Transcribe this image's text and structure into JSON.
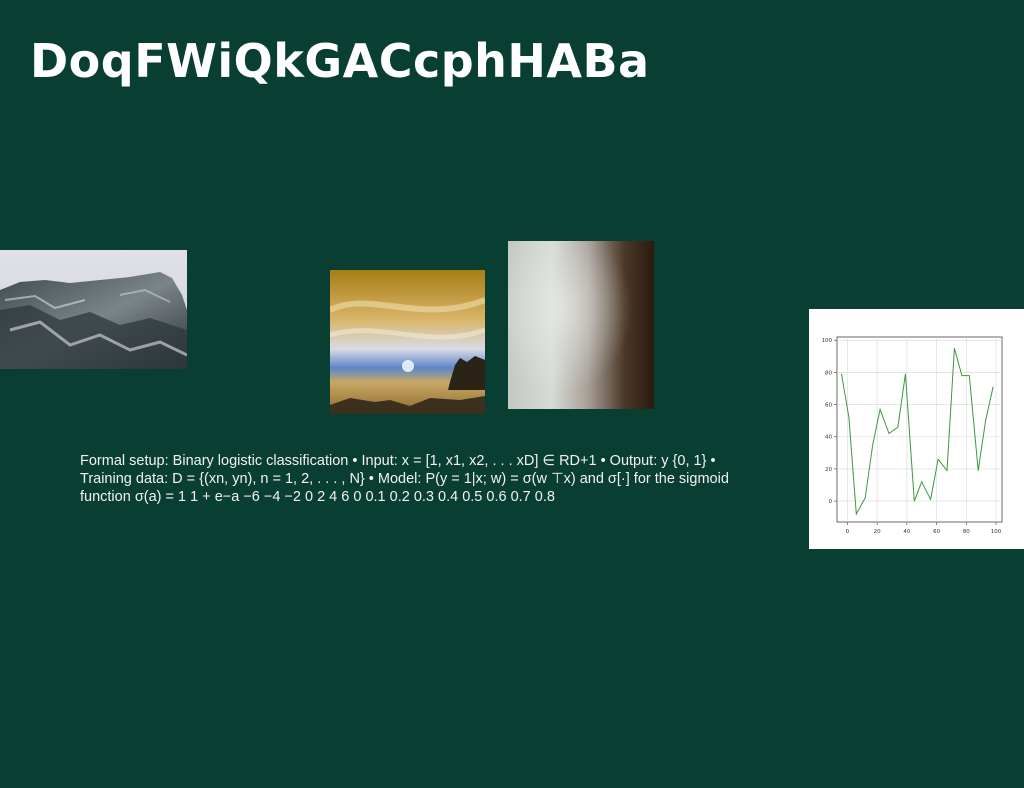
{
  "slide": {
    "title": "DoqFWiQkGACcphHABa",
    "body": "Formal setup: Binary logistic classification • Input: x = [1, x1, x2, . . . xD] ∈ RD+1 • Output: y {0, 1} • Training data: D = {(xn, yn), n = 1, 2, . . . , N} • Model: P(y = 1|x; w) = σ(w ⊤x) and σ[·] for the sigmoid function σ(a) = 1 1 + e−a −6 −4 −2 0 2 4 6 0 0.1 0.2 0.3 0.4 0.5 0.6 0.7 0.8"
  },
  "colors": {
    "background": "#093e33",
    "title": "#ffffff",
    "body_text": "#f2f2f2",
    "chart_line": "#3a9a3a"
  },
  "chart_data": {
    "type": "line",
    "title": "",
    "xlabel": "",
    "ylabel": "",
    "xlim": [
      -7,
      104
    ],
    "ylim": [
      -13,
      102
    ],
    "xticks": [
      "0",
      "20",
      "40",
      "60",
      "80",
      "100"
    ],
    "yticks": [
      "0",
      "20",
      "40",
      "60",
      "80",
      "100"
    ],
    "grid": true,
    "x": [
      -4,
      1,
      6,
      12,
      17,
      22,
      28,
      34,
      39,
      45,
      50,
      56,
      61,
      67,
      72,
      77,
      82,
      88,
      93,
      98
    ],
    "y": [
      79,
      52,
      -8,
      2,
      35,
      57,
      42,
      46,
      79,
      0,
      12,
      1,
      26,
      19,
      95,
      78,
      78,
      19,
      50,
      71
    ]
  }
}
